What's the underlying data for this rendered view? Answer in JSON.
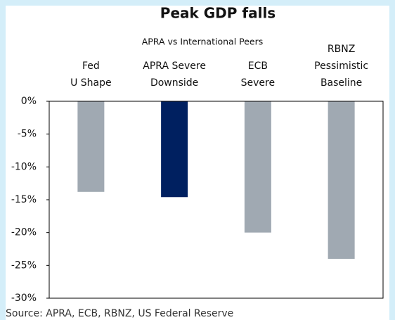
{
  "chart_data": {
    "type": "bar",
    "title": "Peak GDP falls",
    "subtitle": "APRA vs International Peers",
    "categories": [
      [
        "Fed",
        "U Shape"
      ],
      [
        "APRA Severe",
        "Downside"
      ],
      [
        "ECB",
        "Severe"
      ],
      [
        "RBNZ",
        "Pessimistic",
        "Baseline"
      ]
    ],
    "values": [
      -13.8,
      -14.6,
      -20,
      -24
    ],
    "colors": [
      "#a0a9b2",
      "#002060",
      "#a0a9b2",
      "#a0a9b2"
    ],
    "ylim": [
      -30,
      0
    ],
    "yticks": [
      {
        "value": 0,
        "label": "0%"
      },
      {
        "value": -5,
        "label": "-5%"
      },
      {
        "value": -10,
        "label": "-10%"
      },
      {
        "value": -15,
        "label": "-15%"
      },
      {
        "value": -20,
        "label": "-20%"
      },
      {
        "value": -25,
        "label": "-25%"
      },
      {
        "value": -30,
        "label": "-30%"
      }
    ],
    "source": "Source: APRA, ECB, RBNZ, US Federal Reserve"
  }
}
